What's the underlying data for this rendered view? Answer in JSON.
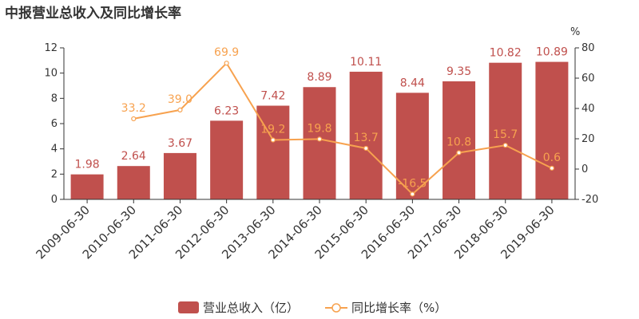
{
  "chart_data": {
    "type": "bar",
    "title": "中报营业总收入及同比增长率",
    "categories": [
      "2009-06-30",
      "2010-06-30",
      "2011-06-30",
      "2012-06-30",
      "2013-06-30",
      "2014-06-30",
      "2015-06-30",
      "2016-06-30",
      "2017-06-30",
      "2018-06-30",
      "2019-06-30"
    ],
    "series": [
      {
        "name": "营业总收入（亿）",
        "type": "bar",
        "axis": "left",
        "color": "#c0504d",
        "label_color": "#c0504d",
        "values": [
          1.98,
          2.64,
          3.67,
          6.23,
          7.42,
          8.89,
          10.11,
          8.44,
          9.35,
          10.82,
          10.89
        ],
        "labels": [
          "1.98",
          "2.64",
          "3.67",
          "6.23",
          "7.42",
          "8.89",
          "10.11",
          "8.44",
          "9.35",
          "10.82",
          "10.89"
        ]
      },
      {
        "name": "同比增长率（%）",
        "type": "line",
        "axis": "right",
        "color": "#f7a24f",
        "label_color": "#f7a24f",
        "values": [
          null,
          33.2,
          39.0,
          69.9,
          19.2,
          19.8,
          13.7,
          -16.5,
          10.8,
          15.7,
          0.6
        ],
        "labels": [
          "",
          "33.2",
          "39.0",
          "69.9",
          "19.2",
          "19.8",
          "13.7",
          "-16.5",
          "10.8",
          "15.7",
          "0.6"
        ]
      }
    ],
    "y_left": {
      "ylim": [
        0,
        12
      ],
      "ticks": [
        "0",
        "2",
        "4",
        "6",
        "8",
        "10",
        "12"
      ]
    },
    "y_right": {
      "ylim": [
        -20,
        80
      ],
      "ticks": [
        "-20",
        "0",
        "20",
        "40",
        "60",
        "80"
      ],
      "unit": "%"
    },
    "grid": false,
    "legend_position": "bottom-center"
  }
}
